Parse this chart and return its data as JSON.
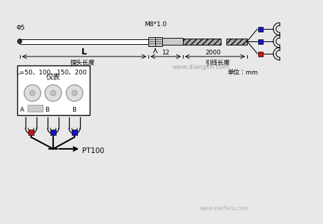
{
  "bg_color": "#e8e8e8",
  "phi5_label": "Φ5",
  "m8_label": "M8*1.0",
  "L_label": "L",
  "dim12_label": "12",
  "dim2000_label": "2000",
  "probe_label": "探头长度",
  "wire_label": "引线长度",
  "L_values_label": "L=50、100、150、200",
  "unit_label": "单位：mm",
  "website1": "www.diangen.com",
  "instrument_label": "仪表",
  "terminal_labels": [
    "A",
    "B",
    "B"
  ],
  "pt100_label": "PT100",
  "blue_color": "#1515cc",
  "red_color": "#cc1515",
  "gray_color": "#999999",
  "light_gray": "#cccccc",
  "med_gray": "#aaaaaa",
  "box_color": "#ffffff",
  "website2": "www.elecfans.com",
  "black": "#000000"
}
